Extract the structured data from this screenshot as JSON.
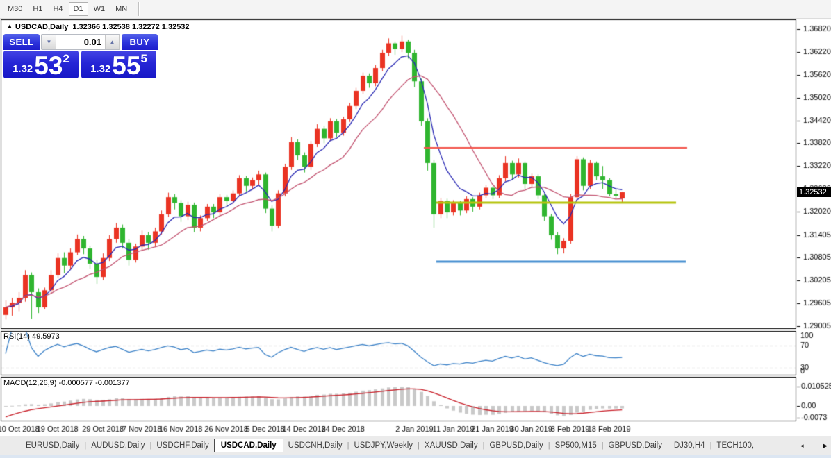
{
  "toolbar": {
    "timeframes": [
      "M30",
      "H1",
      "H4",
      "D1",
      "W1",
      "MN"
    ],
    "active": "D1"
  },
  "header": {
    "arrow_icon": "▲",
    "symbol": "USDCAD,Daily",
    "ohlc": "1.32366 1.32538 1.32272 1.32532"
  },
  "trade": {
    "sell_label": "SELL",
    "buy_label": "BUY",
    "volume": "0.01",
    "volume_down_icon": "▼",
    "volume_up_icon": "▲",
    "sell_price": {
      "base": "1.32",
      "big": "53",
      "sup": "2"
    },
    "buy_price": {
      "base": "1.32",
      "big": "55",
      "sup": "5"
    }
  },
  "price_axis": {
    "ticks": [
      "1.36820",
      "1.36220",
      "1.35620",
      "1.35020",
      "1.34420",
      "1.33820",
      "1.33220",
      "1.32620",
      "1.32020",
      "1.31405",
      "1.30805",
      "1.30205",
      "1.29605",
      "1.29005"
    ],
    "current": "1.32532"
  },
  "date_axis": {
    "labels": [
      {
        "text": "10 Oct 2018",
        "bar": 2
      },
      {
        "text": "19 Oct 2018",
        "bar": 8
      },
      {
        "text": "29 Oct 2018",
        "bar": 15
      },
      {
        "text": "7 Nov 2018",
        "bar": 21
      },
      {
        "text": "16 Nov 2018",
        "bar": 27
      },
      {
        "text": "26 Nov 2018",
        "bar": 34
      },
      {
        "text": "5 Dec 2018",
        "bar": 40
      },
      {
        "text": "14 Dec 2018",
        "bar": 46
      },
      {
        "text": "24 Dec 2018",
        "bar": 52
      },
      {
        "text": "2 Jan 2019",
        "bar": 63
      },
      {
        "text": "11 Jan 2019",
        "bar": 69
      },
      {
        "text": "21 Jan 2019",
        "bar": 75
      },
      {
        "text": "30 Jan 2019",
        "bar": 81
      },
      {
        "text": "8 Feb 2019",
        "bar": 87
      },
      {
        "text": "18 Feb 2019",
        "bar": 93
      }
    ]
  },
  "rsi_pane": {
    "label": "RSI(14) 49.5973",
    "ticks": [
      {
        "v": 100,
        "text": "100"
      },
      {
        "v": 70,
        "text": "70"
      },
      {
        "v": 30,
        "text": "30"
      },
      {
        "v": 0,
        "text": "0"
      }
    ],
    "levels": [
      70,
      30
    ],
    "line_color": "#3c82c8"
  },
  "macd_pane": {
    "label": "MACD(12,26,9) -0.000577 -0.001377",
    "ticks": [
      {
        "v": 0.010525,
        "text": "0.010525"
      },
      {
        "v": 0,
        "text": "0.00"
      },
      {
        "v": -0.0073,
        "text": "-0.0073"
      }
    ],
    "hist_color": "#c9c9c9",
    "signal_color": "#c81e28"
  },
  "tabs": {
    "items": [
      "EURUSD,Daily",
      "AUDUSD,Daily",
      "USDCHF,Daily",
      "USDCAD,Daily",
      "USDCNH,Daily",
      "USDJPY,Weekly",
      "XAUUSD,Daily",
      "GBPUSD,Daily",
      "SP500,M15",
      "GBPUSD,Daily",
      "DJ30,H4",
      "TECH100,"
    ],
    "active_index": 3,
    "scroll_left_icon": "◂",
    "scroll_right_icon": "▶"
  },
  "chart_data": {
    "type": "candlestick",
    "symbol": "USDCAD",
    "timeframe": "Daily",
    "ylim": [
      1.2895,
      1.3704
    ],
    "up_color": "#ea3323",
    "down_color": "#2fb52f",
    "ma_fast": {
      "kind": "ema",
      "period": 6,
      "color": "#2828b4"
    },
    "ma_slow": {
      "kind": "sma",
      "period": 13,
      "color": "#c2506e"
    },
    "rsi": {
      "period": 14,
      "seed": 55
    },
    "macd": {
      "fast": 12,
      "slow": 26,
      "signal": 9,
      "signal_seed": -0.006
    },
    "hlines": [
      {
        "price": 1.337,
        "x1": 610,
        "x2": 989,
        "color": "#f2554b",
        "width": 2
      },
      {
        "price": 1.3226,
        "x1": 628,
        "x2": 973,
        "color": "#b5c410",
        "width": 3
      },
      {
        "price": 1.307,
        "x1": 628,
        "x2": 987,
        "color": "#4a92d2",
        "width": 3
      }
    ],
    "candles": [
      [
        1.293,
        1.2968,
        1.2918,
        1.295
      ],
      [
        1.295,
        1.2975,
        1.2928,
        1.2962
      ],
      [
        1.2962,
        1.299,
        1.294,
        1.2975
      ],
      [
        1.2975,
        1.3048,
        1.2965,
        1.3035
      ],
      [
        1.3035,
        1.3042,
        1.292,
        1.299
      ],
      [
        1.299,
        1.3,
        1.2935,
        1.295
      ],
      [
        1.295,
        1.3002,
        1.2945,
        1.2995
      ],
      [
        1.2995,
        1.3048,
        1.2985,
        1.3035
      ],
      [
        1.3035,
        1.3092,
        1.3028,
        1.308
      ],
      [
        1.308,
        1.3095,
        1.304,
        1.306
      ],
      [
        1.306,
        1.3105,
        1.305,
        1.3095
      ],
      [
        1.3095,
        1.3142,
        1.3088,
        1.313
      ],
      [
        1.313,
        1.3138,
        1.309,
        1.3105
      ],
      [
        1.3105,
        1.3112,
        1.3052,
        1.3065
      ],
      [
        1.3065,
        1.3075,
        1.3012,
        1.303
      ],
      [
        1.303,
        1.3092,
        1.3022,
        1.308
      ],
      [
        1.308,
        1.314,
        1.3072,
        1.313
      ],
      [
        1.313,
        1.3172,
        1.312,
        1.316
      ],
      [
        1.316,
        1.3168,
        1.3105,
        1.312
      ],
      [
        1.312,
        1.313,
        1.306,
        1.3075
      ],
      [
        1.3075,
        1.3118,
        1.3068,
        1.311
      ],
      [
        1.311,
        1.3152,
        1.31,
        1.314
      ],
      [
        1.314,
        1.3148,
        1.3102,
        1.312
      ],
      [
        1.312,
        1.316,
        1.311,
        1.315
      ],
      [
        1.315,
        1.3205,
        1.3142,
        1.3195
      ],
      [
        1.3195,
        1.3252,
        1.3188,
        1.324
      ],
      [
        1.324,
        1.3248,
        1.3208,
        1.3225
      ],
      [
        1.3225,
        1.3232,
        1.3175,
        1.319
      ],
      [
        1.319,
        1.3228,
        1.318,
        1.322
      ],
      [
        1.322,
        1.3226,
        1.3148,
        1.316
      ],
      [
        1.316,
        1.3192,
        1.315,
        1.3185
      ],
      [
        1.3185,
        1.3222,
        1.3178,
        1.3215
      ],
      [
        1.3215,
        1.3222,
        1.3185,
        1.32
      ],
      [
        1.32,
        1.3248,
        1.3192,
        1.324
      ],
      [
        1.324,
        1.3246,
        1.3215,
        1.323
      ],
      [
        1.323,
        1.3258,
        1.3222,
        1.325
      ],
      [
        1.325,
        1.3298,
        1.3242,
        1.329
      ],
      [
        1.329,
        1.3296,
        1.3255,
        1.327
      ],
      [
        1.327,
        1.3292,
        1.326,
        1.3285
      ],
      [
        1.3285,
        1.331,
        1.3272,
        1.33
      ],
      [
        1.33,
        1.3305,
        1.3198,
        1.321
      ],
      [
        1.321,
        1.3218,
        1.315,
        1.3165
      ],
      [
        1.3165,
        1.3258,
        1.3158,
        1.325
      ],
      [
        1.325,
        1.3328,
        1.3242,
        1.332
      ],
      [
        1.332,
        1.3398,
        1.3312,
        1.3385
      ],
      [
        1.3385,
        1.3392,
        1.3338,
        1.335
      ],
      [
        1.335,
        1.3358,
        1.3305,
        1.332
      ],
      [
        1.332,
        1.3388,
        1.3312,
        1.338
      ],
      [
        1.338,
        1.3432,
        1.3372,
        1.342
      ],
      [
        1.342,
        1.3428,
        1.3382,
        1.3395
      ],
      [
        1.3395,
        1.3448,
        1.3388,
        1.344
      ],
      [
        1.344,
        1.3446,
        1.3398,
        1.341
      ],
      [
        1.341,
        1.3452,
        1.3402,
        1.3445
      ],
      [
        1.3445,
        1.3488,
        1.3438,
        1.348
      ],
      [
        1.348,
        1.3528,
        1.3472,
        1.352
      ],
      [
        1.352,
        1.3568,
        1.3512,
        1.356
      ],
      [
        1.356,
        1.3566,
        1.3528,
        1.354
      ],
      [
        1.354,
        1.3588,
        1.3532,
        1.358
      ],
      [
        1.358,
        1.3628,
        1.3572,
        1.362
      ],
      [
        1.362,
        1.3658,
        1.3612,
        1.3645
      ],
      [
        1.3645,
        1.365,
        1.3615,
        1.363
      ],
      [
        1.363,
        1.3665,
        1.3622,
        1.365
      ],
      [
        1.365,
        1.3655,
        1.3605,
        1.362
      ],
      [
        1.362,
        1.3628,
        1.353,
        1.3545
      ],
      [
        1.3545,
        1.3552,
        1.3428,
        1.344
      ],
      [
        1.344,
        1.3448,
        1.331,
        1.333
      ],
      [
        1.333,
        1.3338,
        1.316,
        1.3195
      ],
      [
        1.3195,
        1.3238,
        1.3185,
        1.323
      ],
      [
        1.323,
        1.3236,
        1.3185,
        1.32
      ],
      [
        1.32,
        1.3232,
        1.3192,
        1.3225
      ],
      [
        1.3225,
        1.323,
        1.3192,
        1.3205
      ],
      [
        1.3205,
        1.3242,
        1.3198,
        1.3235
      ],
      [
        1.3235,
        1.324,
        1.3202,
        1.3215
      ],
      [
        1.3215,
        1.3252,
        1.3208,
        1.3245
      ],
      [
        1.3245,
        1.3272,
        1.3238,
        1.3265
      ],
      [
        1.3265,
        1.327,
        1.3235,
        1.3245
      ],
      [
        1.3245,
        1.3298,
        1.3238,
        1.329
      ],
      [
        1.329,
        1.3348,
        1.3282,
        1.333
      ],
      [
        1.333,
        1.3336,
        1.3288,
        1.33
      ],
      [
        1.33,
        1.3342,
        1.3292,
        1.333
      ],
      [
        1.333,
        1.3334,
        1.3262,
        1.3275
      ],
      [
        1.3275,
        1.3302,
        1.3265,
        1.3295
      ],
      [
        1.3295,
        1.33,
        1.3235,
        1.3245
      ],
      [
        1.3245,
        1.325,
        1.3178,
        1.319
      ],
      [
        1.319,
        1.3196,
        1.3128,
        1.314
      ],
      [
        1.314,
        1.3148,
        1.309,
        1.3105
      ],
      [
        1.3105,
        1.3132,
        1.3092,
        1.3125
      ],
      [
        1.3125,
        1.3248,
        1.3118,
        1.324
      ],
      [
        1.324,
        1.3348,
        1.3232,
        1.334
      ],
      [
        1.334,
        1.3345,
        1.3258,
        1.327
      ],
      [
        1.327,
        1.3338,
        1.3262,
        1.333
      ],
      [
        1.333,
        1.3334,
        1.3285,
        1.3295
      ],
      [
        1.3295,
        1.3322,
        1.3262,
        1.3285
      ],
      [
        1.3285,
        1.329,
        1.3242,
        1.3248
      ],
      [
        1.3248,
        1.326,
        1.3236,
        1.3244
      ],
      [
        1.32366,
        1.32538,
        1.32272,
        1.32532
      ]
    ]
  }
}
